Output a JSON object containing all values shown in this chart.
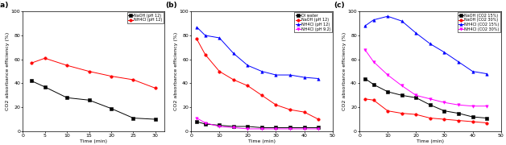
{
  "panel_a": {
    "label": "(a)",
    "series": [
      {
        "label": "NaOH (pH 12)",
        "color": "black",
        "marker": "s",
        "x": [
          2,
          5,
          10,
          15,
          20,
          25,
          30
        ],
        "y": [
          42,
          37,
          28,
          26,
          19,
          11,
          10
        ]
      },
      {
        "label": "NH4Cl (pH 12)",
        "color": "red",
        "marker": "o",
        "x": [
          2,
          5,
          10,
          15,
          20,
          25,
          30
        ],
        "y": [
          57,
          61,
          55,
          50,
          46,
          43,
          36
        ]
      }
    ],
    "xlabel": "Time (min)",
    "ylabel": "CO2 absorbance efficiency (%)",
    "xlim": [
      0,
      32
    ],
    "ylim": [
      0,
      100
    ],
    "xticks": [
      0,
      5,
      10,
      15,
      20,
      25,
      30
    ],
    "yticks": [
      0,
      20,
      40,
      60,
      80,
      100
    ]
  },
  "panel_b": {
    "label": "(b)",
    "series": [
      {
        "label": "DI water",
        "color": "black",
        "marker": "s",
        "x": [
          2,
          5,
          10,
          15,
          20,
          25,
          30,
          35,
          40,
          45
        ],
        "y": [
          8,
          6,
          5,
          4,
          4,
          3,
          3,
          3,
          3,
          3
        ]
      },
      {
        "label": "NaOH (pH 12)",
        "color": "red",
        "marker": "o",
        "x": [
          2,
          5,
          10,
          15,
          20,
          25,
          30,
          35,
          40,
          45
        ],
        "y": [
          77,
          64,
          50,
          43,
          38,
          30,
          22,
          18,
          16,
          10
        ]
      },
      {
        "label": "NH4Cl (pH 12)",
        "color": "blue",
        "marker": "^",
        "x": [
          2,
          5,
          10,
          15,
          20,
          25,
          30,
          35,
          40,
          45
        ],
        "y": [
          87,
          80,
          78,
          65,
          55,
          50,
          47,
          47,
          45,
          44
        ]
      },
      {
        "label": "NH4Cl (pH 9.2)",
        "color": "magenta",
        "marker": "v",
        "x": [
          2,
          5,
          10,
          15,
          20,
          25,
          30,
          35,
          40,
          45
        ],
        "y": [
          11,
          7,
          4,
          3,
          2,
          2,
          2,
          2,
          2,
          2
        ]
      }
    ],
    "xlabel": "Time (min)",
    "ylabel": "CO2 absorbance efficiency (%)",
    "xlim": [
      0,
      50
    ],
    "ylim": [
      0,
      100
    ],
    "xticks": [
      0,
      10,
      20,
      30,
      40,
      50
    ],
    "yticks": [
      0,
      20,
      40,
      60,
      80,
      100
    ]
  },
  "panel_c": {
    "label": "(c)",
    "series": [
      {
        "label": "NaOH (CO2 15%)",
        "color": "black",
        "marker": "s",
        "x": [
          2,
          5,
          10,
          15,
          20,
          25,
          30,
          35,
          40,
          45
        ],
        "y": [
          44,
          39,
          33,
          30,
          28,
          22,
          17,
          15,
          12,
          11
        ]
      },
      {
        "label": "NaOH (CO2 30%)",
        "color": "red",
        "marker": "o",
        "x": [
          2,
          5,
          10,
          15,
          20,
          25,
          30,
          35,
          40,
          45
        ],
        "y": [
          27,
          26,
          17,
          15,
          14,
          11,
          10,
          9,
          8,
          7
        ]
      },
      {
        "label": "NH4Cl (CO2 15%)",
        "color": "blue",
        "marker": "^",
        "x": [
          2,
          5,
          10,
          15,
          20,
          25,
          30,
          35,
          40,
          45
        ],
        "y": [
          88,
          93,
          96,
          92,
          82,
          73,
          66,
          58,
          50,
          48
        ]
      },
      {
        "label": "NH4Cl (CO2 30%)",
        "color": "magenta",
        "marker": "v",
        "x": [
          2,
          5,
          10,
          15,
          20,
          25,
          30,
          35,
          40,
          45
        ],
        "y": [
          68,
          58,
          47,
          38,
          30,
          27,
          24,
          22,
          21,
          21
        ]
      }
    ],
    "xlabel": "Time (min)",
    "ylabel": "CO2 absorbance efficiency (%)",
    "xlim": [
      0,
      50
    ],
    "ylim": [
      0,
      100
    ],
    "xticks": [
      0,
      10,
      20,
      30,
      40,
      50
    ],
    "yticks": [
      0,
      20,
      40,
      60,
      80,
      100
    ]
  },
  "figsize": [
    6.28,
    1.8
  ],
  "dpi": 100,
  "tick_labelsize": 4.5,
  "axis_labelsize": 4.5,
  "legend_fontsize": 3.5,
  "marker_size": 2.5,
  "line_width": 0.7,
  "label_fontsize": 6.5
}
